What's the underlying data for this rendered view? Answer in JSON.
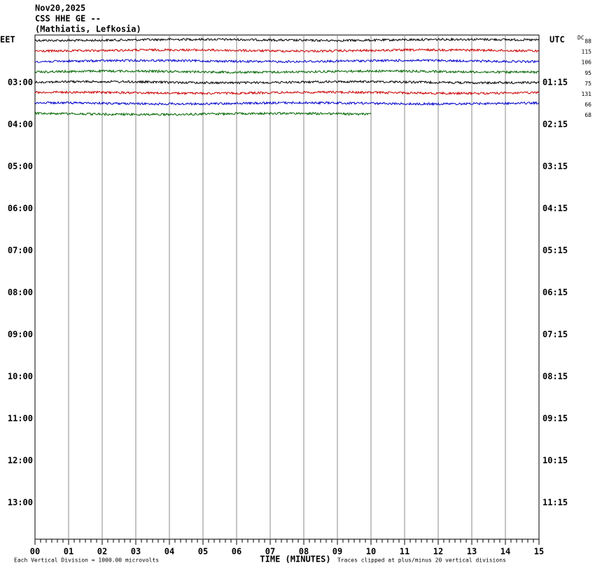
{
  "header": {
    "date": "Nov20,2025",
    "channel": "CSS HHE GE --",
    "location": "(Mathiatis, Lefkosia)"
  },
  "left_axis": {
    "zone": "EET",
    "labels": [
      "03:00",
      "04:00",
      "05:00",
      "06:00",
      "07:00",
      "08:00",
      "09:00",
      "10:00",
      "11:00",
      "12:00",
      "13:00"
    ]
  },
  "right_axis": {
    "zone": "UTC",
    "labels": [
      "01:15",
      "02:15",
      "03:15",
      "04:15",
      "05:15",
      "06:15",
      "07:15",
      "08:15",
      "09:15",
      "10:15",
      "11:15"
    ]
  },
  "dc": {
    "title": "DC",
    "values": [
      "88",
      "115",
      "106",
      "95",
      "75",
      "131",
      "66",
      "68"
    ]
  },
  "trace_colors": [
    "#000000",
    "#cc0000",
    "#0000cc",
    "#006600"
  ],
  "x_axis": {
    "title": "TIME (MINUTES)",
    "labels": [
      "00",
      "01",
      "02",
      "03",
      "04",
      "05",
      "06",
      "07",
      "08",
      "09",
      "10",
      "11",
      "12",
      "13",
      "14",
      "15"
    ]
  },
  "footer": {
    "scale": "Each Vertical Division = 1000.00 microvolts",
    "clip": "Traces clipped at plus/minus 20 vertical divisions"
  }
}
